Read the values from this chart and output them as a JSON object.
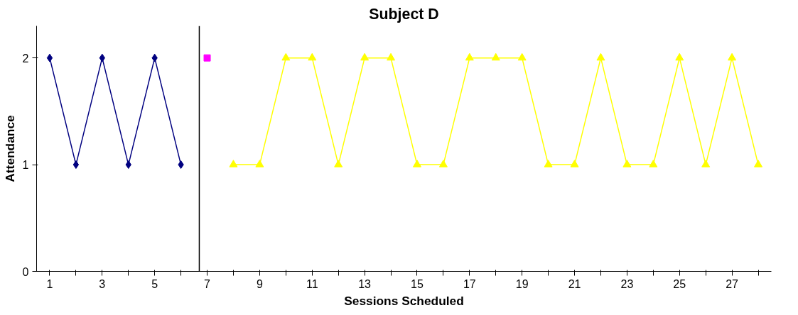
{
  "chart_data": {
    "type": "line",
    "title": "Subject D",
    "xlabel": "Sessions Scheduled",
    "ylabel": "Attendance",
    "series": [
      {
        "color": "#000080",
        "marker": "diamond",
        "x": [
          1,
          2,
          3,
          4,
          5,
          6
        ],
        "values": [
          2,
          1,
          2,
          1,
          2,
          1
        ]
      },
      {
        "color": "#ff00ff",
        "marker": "square",
        "x": [
          7
        ],
        "values": [
          2
        ]
      },
      {
        "color": "#ffff00",
        "marker": "triangle",
        "x": [
          8,
          9,
          10,
          11,
          12,
          13,
          14,
          15,
          16,
          17,
          18,
          19,
          20,
          21,
          22,
          23,
          24,
          25,
          26,
          27,
          28
        ],
        "values": [
          1,
          1,
          2,
          2,
          1,
          2,
          2,
          1,
          1,
          2,
          2,
          2,
          1,
          1,
          2,
          1,
          1,
          2,
          1,
          2,
          1
        ]
      }
    ],
    "ref_lines": [
      {
        "axis": "x",
        "value": 6.7,
        "label": null,
        "color": "#000000"
      }
    ],
    "xlim": [
      0.5,
      28.5
    ],
    "ylim": [
      0,
      2.3
    ],
    "xticks": [
      1,
      {
        "value": 2,
        "label": null
      },
      3,
      {
        "value": 4,
        "label": null
      },
      5,
      {
        "value": 6,
        "label": null
      },
      7,
      {
        "value": 8,
        "label": null
      },
      9,
      {
        "value": 10,
        "label": null
      },
      11,
      {
        "value": 12,
        "label": null
      },
      13,
      {
        "value": 14,
        "label": null
      },
      15,
      {
        "value": 16,
        "label": null
      },
      17,
      {
        "value": 18,
        "label": null
      },
      19,
      {
        "value": 20,
        "label": null
      },
      21,
      {
        "value": 22,
        "label": null
      },
      23,
      {
        "value": 24,
        "label": null
      },
      25,
      {
        "value": 26,
        "label": null
      },
      27,
      {
        "value": 28,
        "label": null
      }
    ],
    "yticks": [
      0,
      1,
      2
    ],
    "grid": false
  }
}
